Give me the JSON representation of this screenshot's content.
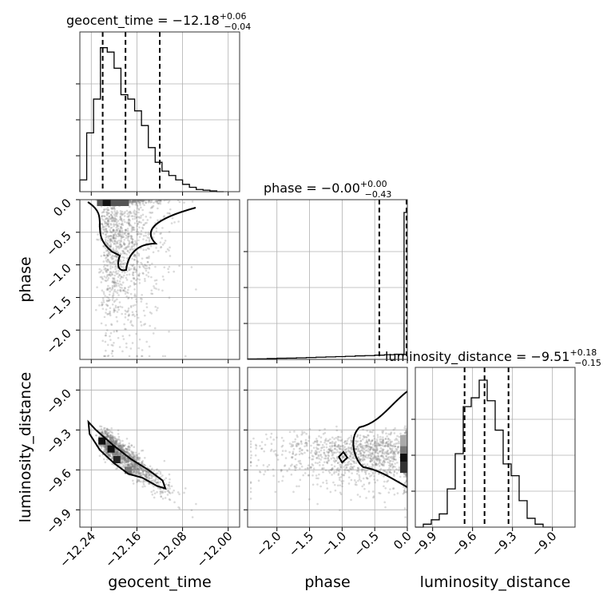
{
  "chart_data": {
    "type": "corner",
    "parameters": [
      "geocent_time",
      "phase",
      "luminosity_distance"
    ],
    "panel_titles": [
      {
        "name": "geocent_time",
        "median": "−12.18",
        "plus": "+0.06",
        "minus": "−0.04"
      },
      {
        "name": "phase",
        "median": "−0.00",
        "plus": "+0.00",
        "minus": "−0.43"
      },
      {
        "name": "luminosity_distance",
        "median": "−9.51",
        "plus": "+0.18",
        "minus": "−0.15"
      }
    ],
    "axes": {
      "geocent_time": {
        "xlabel": "geocent_time",
        "range": [
          -12.26,
          -11.98
        ],
        "ticks": [
          -12.24,
          -12.16,
          -12.08,
          -12.0
        ],
        "tick_labels": [
          "−12.24",
          "−12.16",
          "−12.08",
          "−12.00"
        ]
      },
      "phase": {
        "xlabel": "phase",
        "ylabel": "phase",
        "range": [
          -2.45,
          0.0
        ],
        "ticks": [
          -2.0,
          -1.5,
          -1.0,
          -0.5,
          0.0
        ],
        "x_tick_labels": [
          "−2.0",
          "−1.5",
          "−1.0",
          "−0.5",
          "0.0"
        ],
        "y_tick_labels": [
          "−2.0",
          "−1.5",
          "−1.0",
          "−0.5",
          "0.0"
        ]
      },
      "luminosity_distance": {
        "xlabel": "luminosity_distance",
        "ylabel": "luminosity_distance",
        "range": [
          -10.03,
          -8.83
        ],
        "ticks": [
          -9.9,
          -9.6,
          -9.3,
          -9.0
        ],
        "tick_labels": [
          "−9.9",
          "−9.6",
          "−9.3",
          "−9.0"
        ]
      }
    },
    "grid": true,
    "histograms": {
      "geocent_time": {
        "quantiles": [
          -12.22,
          -12.18,
          -12.12
        ],
        "bin_edges": [
          -12.26,
          -12.248,
          -12.236,
          -12.224,
          -12.212,
          -12.2,
          -12.188,
          -12.176,
          -12.164,
          -12.152,
          -12.14,
          -12.128,
          -12.116,
          -12.104,
          -12.092,
          -12.08,
          -12.068,
          -12.056,
          -12.044,
          -12.032,
          -12.02,
          -12.008
        ],
        "counts": [
          0.08,
          0.4,
          0.63,
          0.98,
          0.95,
          0.84,
          0.66,
          0.63,
          0.55,
          0.45,
          0.3,
          0.2,
          0.14,
          0.11,
          0.08,
          0.05,
          0.03,
          0.015,
          0.01,
          0.005,
          0.0
        ]
      },
      "phase": {
        "quantiles": [
          -0.43,
          -0.005,
          0.0
        ],
        "bin_edges": [
          -2.45,
          -2.3,
          -2.15,
          -2.0,
          -1.85,
          -1.7,
          -1.55,
          -1.4,
          -1.25,
          -1.1,
          -0.95,
          -0.8,
          -0.65,
          -0.5,
          -0.35,
          -0.2,
          -0.05,
          0.0
        ],
        "counts": [
          0.003,
          0.004,
          0.006,
          0.008,
          0.009,
          0.011,
          0.013,
          0.015,
          0.017,
          0.019,
          0.021,
          0.024,
          0.026,
          0.029,
          0.032,
          0.035,
          1.0
        ]
      },
      "luminosity_distance": {
        "quantiles": [
          -9.66,
          -9.51,
          -9.33
        ],
        "bin_edges": [
          -10.03,
          -9.97,
          -9.91,
          -9.85,
          -9.79,
          -9.73,
          -9.67,
          -9.61,
          -9.55,
          -9.49,
          -9.43,
          -9.37,
          -9.31,
          -9.25,
          -9.19,
          -9.13,
          -9.07,
          -9.01
        ],
        "counts": [
          0.0,
          0.02,
          0.05,
          0.09,
          0.26,
          0.5,
          0.82,
          0.88,
          1.0,
          0.86,
          0.66,
          0.43,
          0.35,
          0.18,
          0.06,
          0.02,
          0.0
        ]
      }
    },
    "scatter_2d": [
      {
        "x": "geocent_time",
        "y": "phase",
        "n_points": 1400
      },
      {
        "x": "geocent_time",
        "y": "luminosity_distance",
        "n_points": 1400
      },
      {
        "x": "phase",
        "y": "luminosity_distance",
        "n_points": 1400
      }
    ]
  }
}
